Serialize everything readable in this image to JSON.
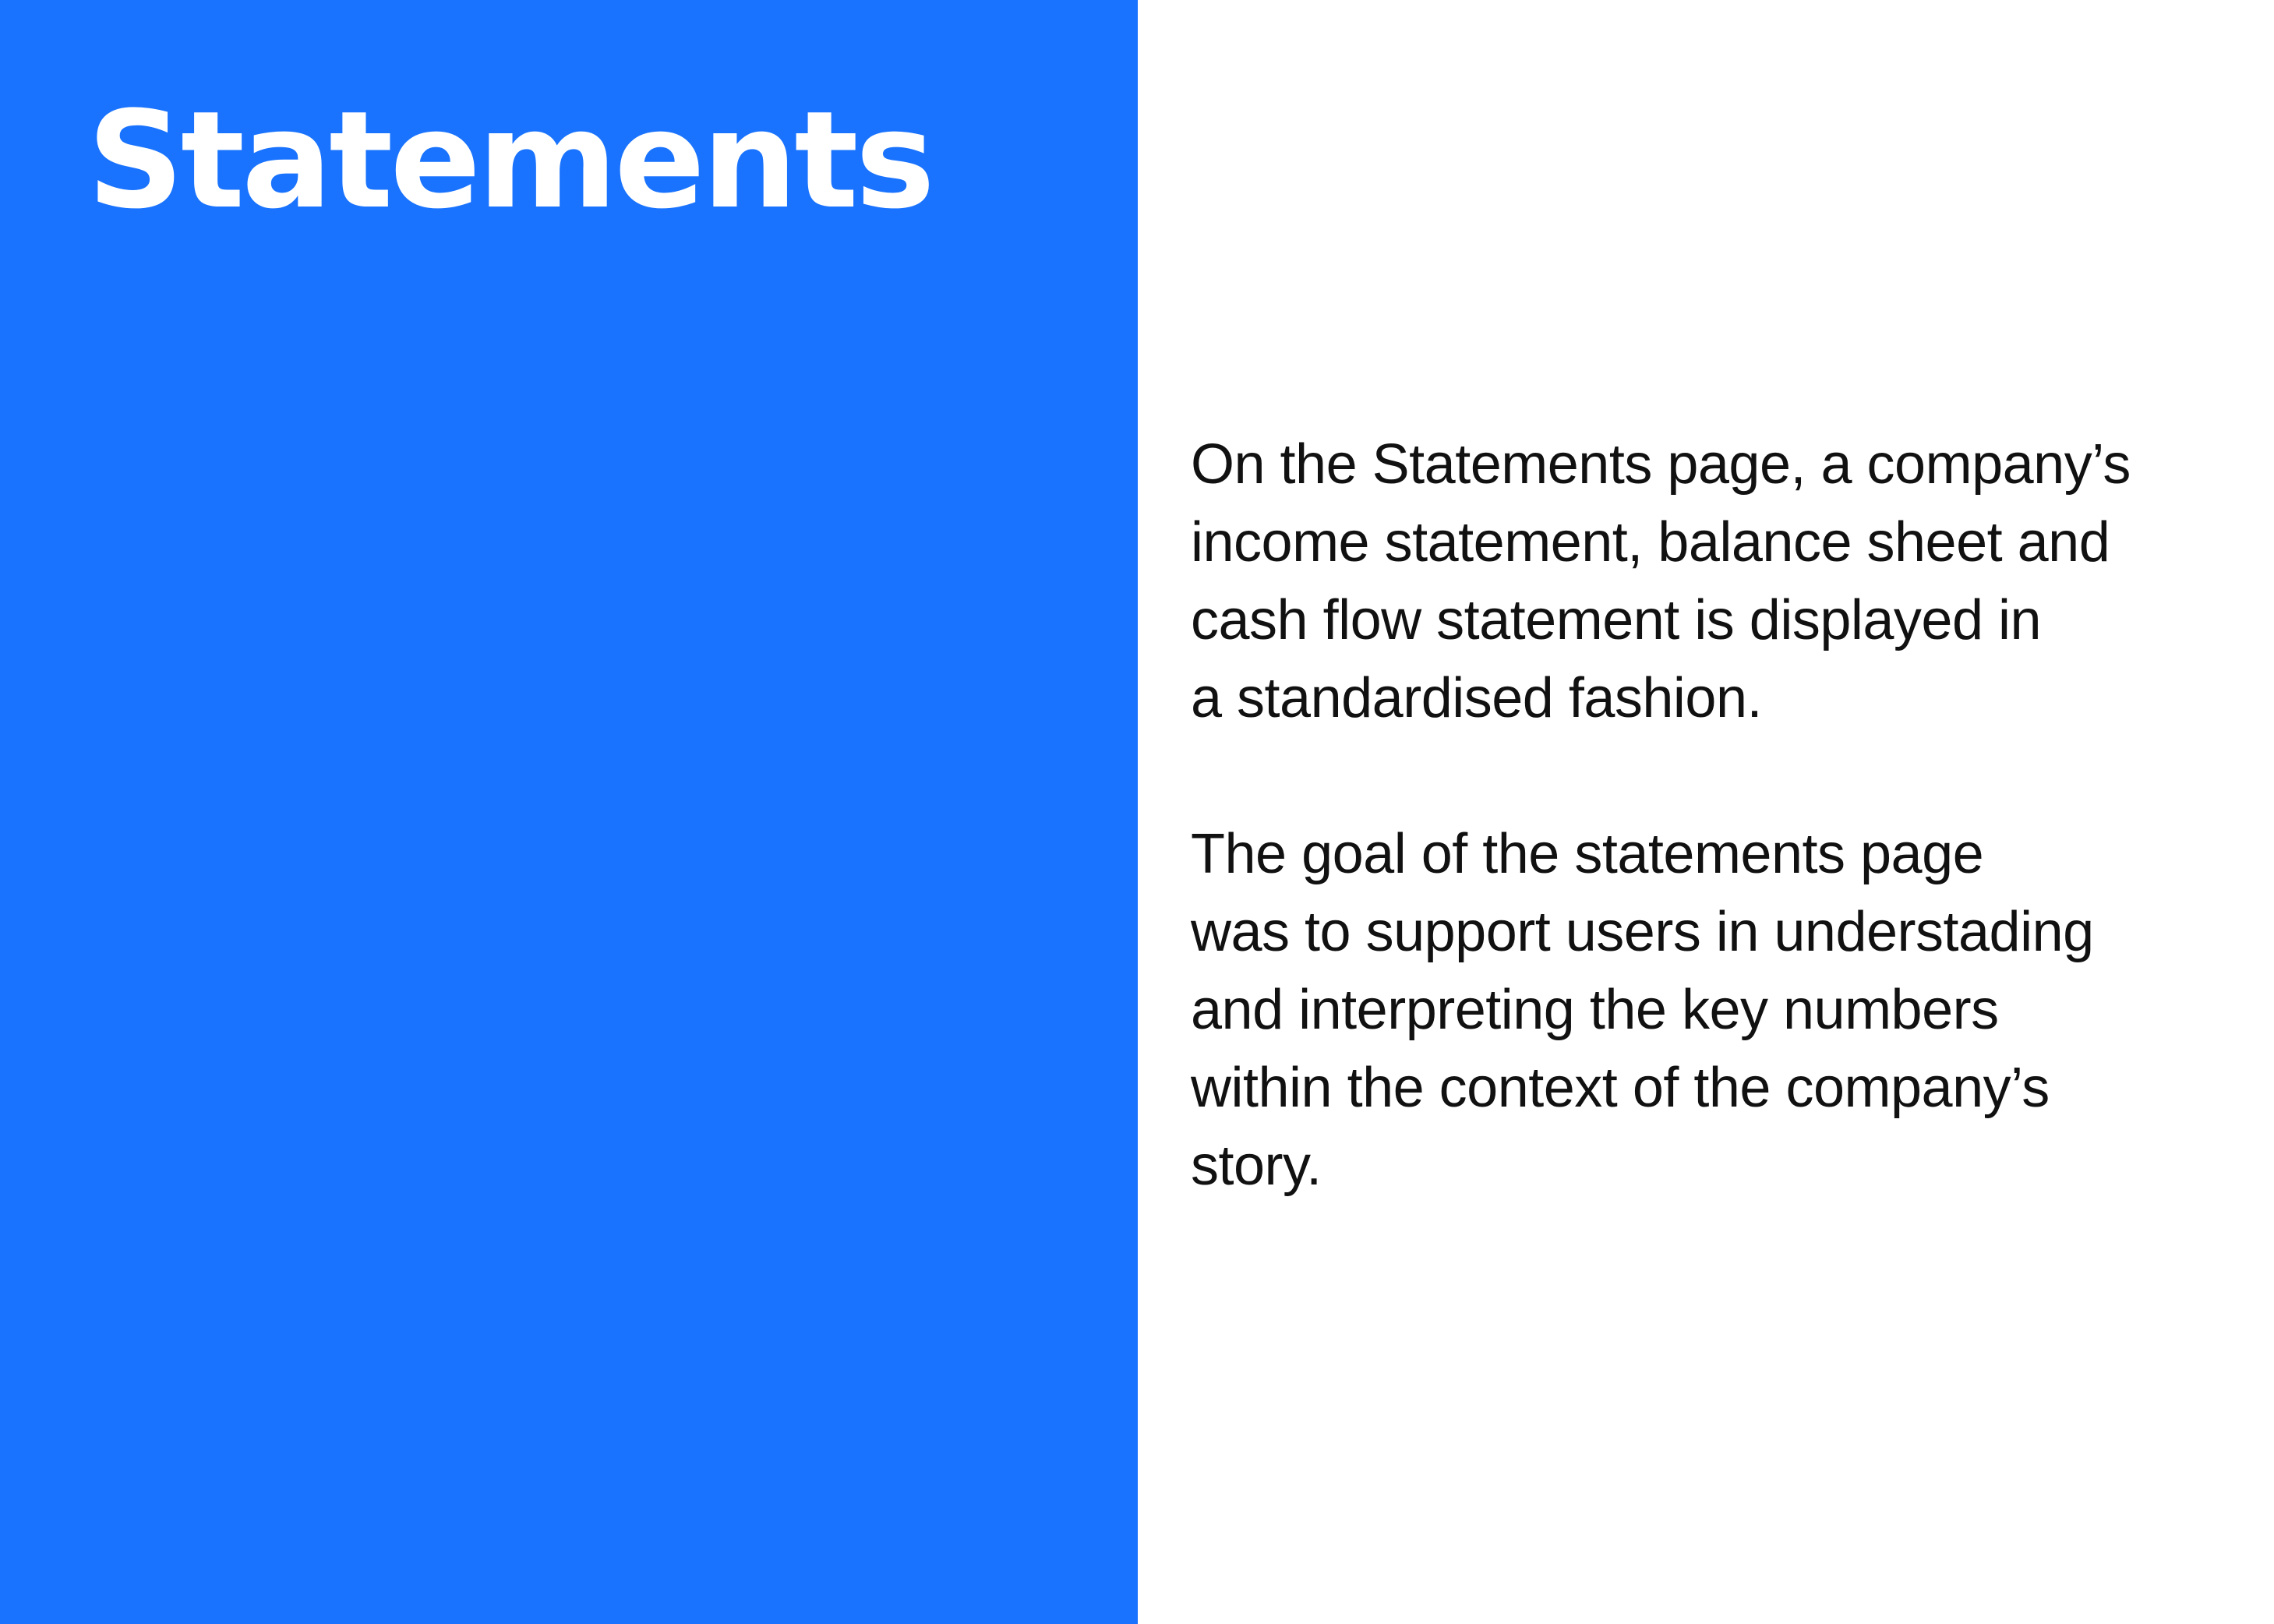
{
  "title": "Statements",
  "colors": {
    "panel": "#1a73ff",
    "title_text": "#ffffff",
    "body_text": "#111111",
    "background": "#ffffff"
  },
  "body": {
    "paragraph_1": {
      "lines": [
        "On the Statements page, a company’s",
        "income statement, balance sheet and",
        "cash flow statement is displayed in",
        "a standardised fashion."
      ]
    },
    "paragraph_2": {
      "lines": [
        "The goal of the statements page",
        "was to support users in understading",
        "and interpreting the key numbers",
        "within the context of the company’s",
        "story."
      ]
    }
  }
}
